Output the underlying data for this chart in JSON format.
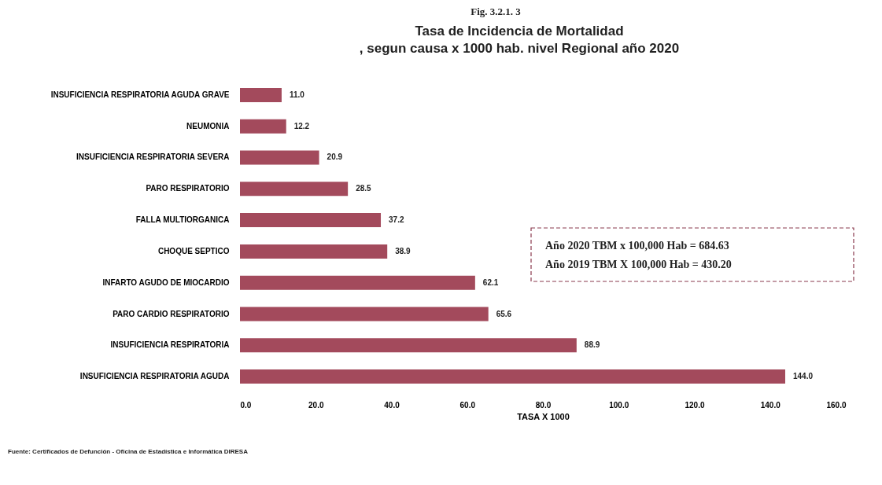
{
  "chart_data": {
    "type": "bar",
    "orientation": "horizontal",
    "title": [
      "Tasa de Incidencia de Mortalidad",
      ", segun causa x 1000 hab.  nivel Regional año 2020"
    ],
    "xlabel": "TASA X 1000",
    "categories": [
      "INSUFICIENCIA RESPIRATORIA AGUDA GRAVE",
      "NEUMONIA",
      "INSUFICIENCIA RESPIRATORIA SEVERA",
      "PARO RESPIRATORIO",
      "FALLA MULTIORGANICA",
      "CHOQUE SEPTICO",
      "INFARTO AGUDO DE MIOCARDIO",
      "PARO CARDIO RESPIRATORIO",
      "INSUFICIENCIA RESPIRATORIA",
      "INSUFICIENCIA RESPIRATORIA AGUDA"
    ],
    "values": [
      11.0,
      12.2,
      20.9,
      28.5,
      37.2,
      38.9,
      62.1,
      65.6,
      88.9,
      144.0
    ],
    "value_labels": [
      "11.0",
      "12.2",
      "20.9",
      "28.5",
      "37.2",
      "38.9",
      "62.1",
      "65.6",
      "88.9",
      "144.0"
    ],
    "color": "#a34a5c",
    "xlim": [
      0,
      160
    ],
    "xticks": [
      {
        "value": 0,
        "label": "0.0"
      },
      {
        "value": 20,
        "label": "20.0"
      },
      {
        "value": 40,
        "label": "40.0"
      },
      {
        "value": 60,
        "label": "60.0"
      },
      {
        "value": 80,
        "label": "80.0"
      },
      {
        "value": 100,
        "label": "100.0"
      },
      {
        "value": 120,
        "label": "120.0"
      },
      {
        "value": 140,
        "label": "140.0"
      },
      {
        "value": 160,
        "label": "160.0"
      }
    ],
    "grid": false,
    "annotations": [
      "Fig. 3.2.1. 3",
      "Año 2020 TBM x 100,000 Hab  = 684.63",
      "Año 2019 TBM X 100,000 Hab = 430.20",
      "Fuente: Certificados de Defunción - Oficina de Estadística e Informática DIRESA"
    ]
  }
}
